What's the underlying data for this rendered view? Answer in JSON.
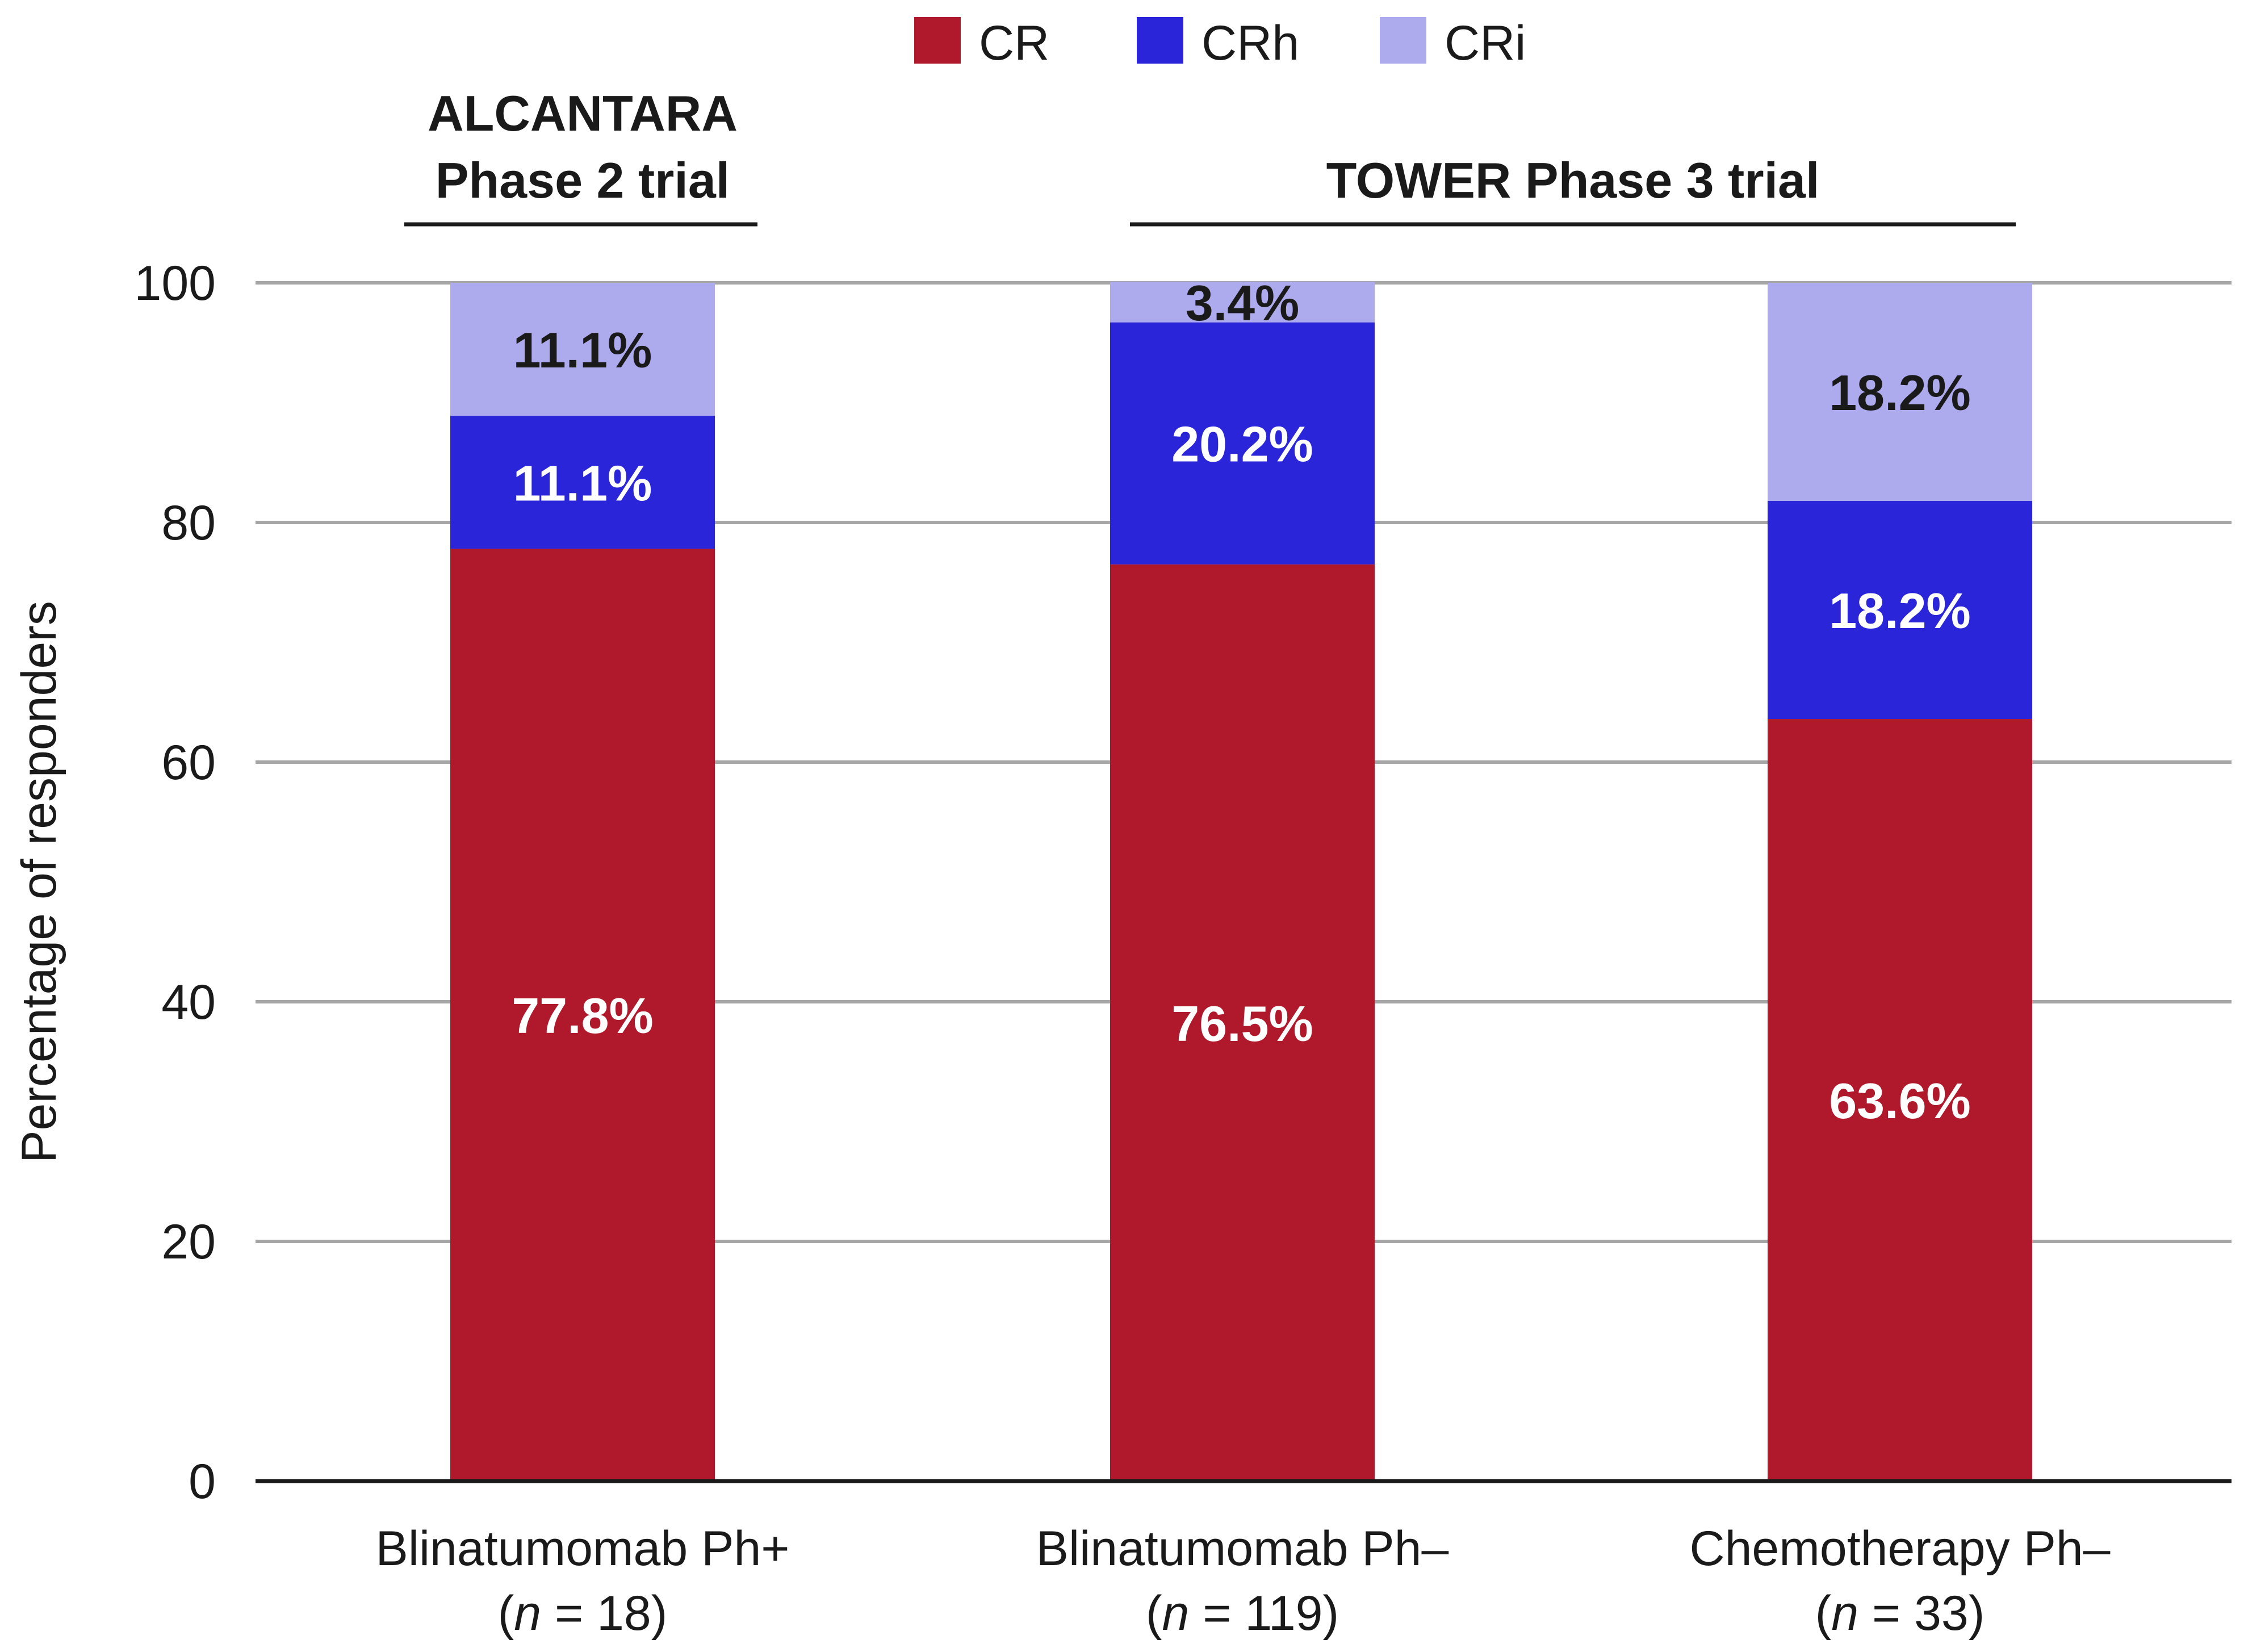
{
  "chart_data": {
    "type": "bar",
    "stacked": true,
    "ylabel": "Percentage of responders",
    "ylim": [
      0,
      100
    ],
    "yticks": [
      0,
      20,
      40,
      60,
      80,
      100
    ],
    "grid": true,
    "legend_position": "top",
    "categories": [
      {
        "name": "Blinatumomab Ph+",
        "n_prefix": "(",
        "n_italic": "n",
        "n_suffix": " = 18)"
      },
      {
        "name": "Blinatumomab Ph–",
        "n_prefix": "(",
        "n_italic": "n",
        "n_suffix": " = 119)"
      },
      {
        "name": "Chemotherapy Ph–",
        "n_prefix": "(",
        "n_italic": "n",
        "n_suffix": " = 33)"
      }
    ],
    "series": [
      {
        "name": "CR",
        "color": "#b0182c",
        "label_color": "#ffffff",
        "values": [
          77.8,
          76.5,
          63.6
        ],
        "labels": [
          "77.8%",
          "76.5%",
          "63.6%"
        ]
      },
      {
        "name": "CRh",
        "color": "#2b25d9",
        "label_color": "#ffffff",
        "values": [
          11.1,
          20.2,
          18.2
        ],
        "labels": [
          "11.1%",
          "20.2%",
          "18.2%"
        ]
      },
      {
        "name": "CRi",
        "color": "#adaaee",
        "label_color": "#1a1a1a",
        "values": [
          11.1,
          3.4,
          18.2
        ],
        "labels": [
          "11.1%",
          "3.4%",
          "18.2%"
        ]
      }
    ],
    "groups": [
      {
        "lines": [
          "ALCANTARA",
          "Phase 2 trial"
        ],
        "categories": [
          0
        ]
      },
      {
        "lines": [
          "TOWER Phase 3 trial"
        ],
        "categories": [
          1,
          2
        ]
      }
    ]
  }
}
